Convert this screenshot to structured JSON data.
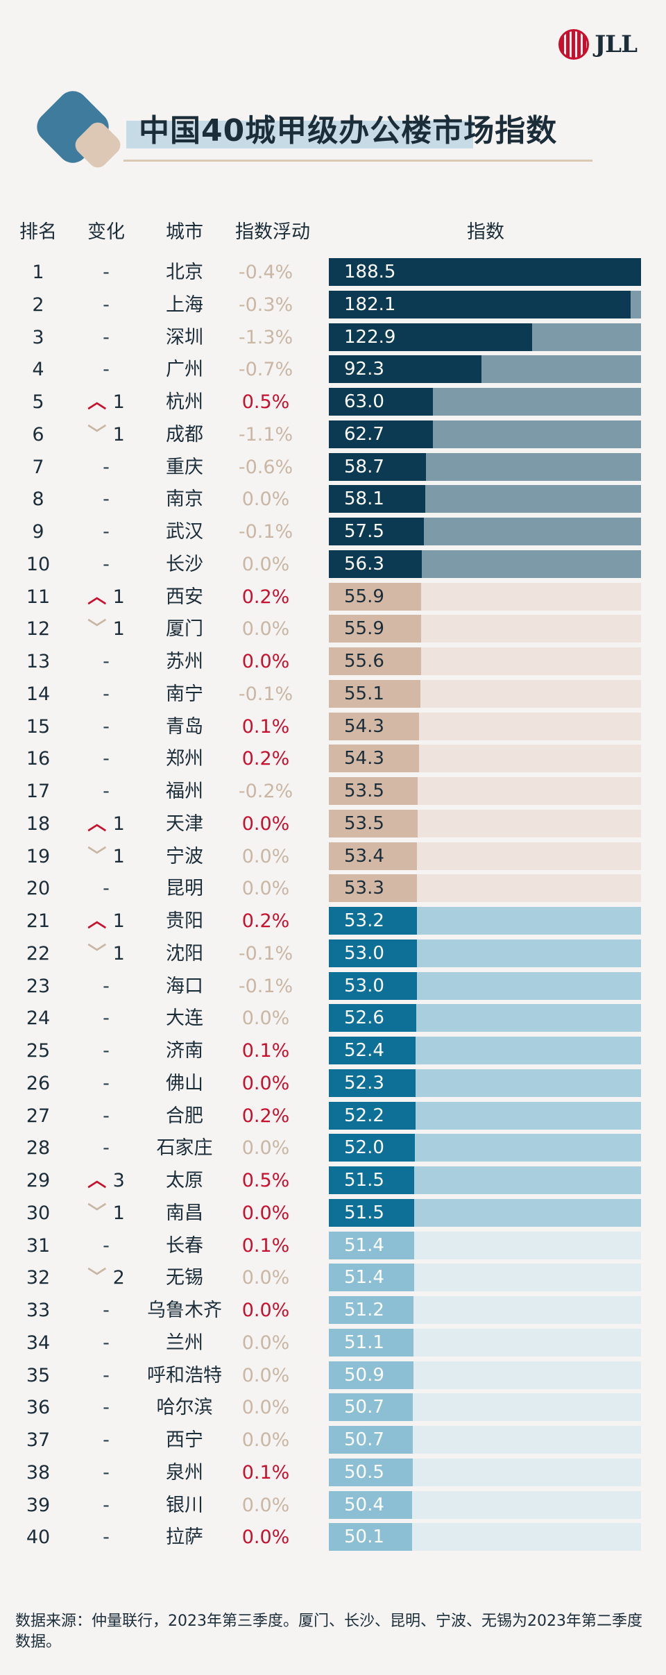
{
  "brand": "JLL",
  "title": "中国40城甲级办公楼市场指数",
  "headers": {
    "rank": "排名",
    "change": "变化",
    "city": "城市",
    "pct": "指数浮动",
    "index": "指数"
  },
  "footer": "数据来源：仲量联行，2023年第三季度。厦门、长沙、昆明、宁波、无锡为2023年第二季度数据。",
  "colors": {
    "tier1_fill": "#0c3a52",
    "tier1_track": "#7c9aa8",
    "tier2_fill": "#d3b8a5",
    "tier2_track": "#efe4dd",
    "tier3_fill": "#0e6f97",
    "tier3_track": "#a9cfde",
    "tier4_fill": "#8cbfd3",
    "tier4_track": "#e1ecf0",
    "up": "#c8102e",
    "flat": "#c9b6a4"
  },
  "chart_data": {
    "type": "table",
    "title": "中国40城甲级办公楼市场指数",
    "columns": [
      "排名",
      "变化",
      "城市",
      "指数浮动",
      "指数"
    ],
    "xlim": [
      0,
      188.5
    ],
    "rows": [
      {
        "rank": "1",
        "change": "-",
        "dir": "none",
        "city": "北京",
        "pct": "-0.4%",
        "pct_up": false,
        "index": 188.5,
        "tier": 1
      },
      {
        "rank": "2",
        "change": "-",
        "dir": "none",
        "city": "上海",
        "pct": "-0.3%",
        "pct_up": false,
        "index": 182.1,
        "tier": 1
      },
      {
        "rank": "3",
        "change": "-",
        "dir": "none",
        "city": "深圳",
        "pct": "-1.3%",
        "pct_up": false,
        "index": 122.9,
        "tier": 1
      },
      {
        "rank": "4",
        "change": "-",
        "dir": "none",
        "city": "广州",
        "pct": "-0.7%",
        "pct_up": false,
        "index": 92.3,
        "tier": 1
      },
      {
        "rank": "5",
        "change": "1",
        "dir": "up",
        "city": "杭州",
        "pct": "0.5%",
        "pct_up": true,
        "index": 63.0,
        "tier": 1
      },
      {
        "rank": "6",
        "change": "1",
        "dir": "down",
        "city": "成都",
        "pct": "-1.1%",
        "pct_up": false,
        "index": 62.7,
        "tier": 1
      },
      {
        "rank": "7",
        "change": "-",
        "dir": "none",
        "city": "重庆",
        "pct": "-0.6%",
        "pct_up": false,
        "index": 58.7,
        "tier": 1
      },
      {
        "rank": "8",
        "change": "-",
        "dir": "none",
        "city": "南京",
        "pct": "0.0%",
        "pct_up": false,
        "index": 58.1,
        "tier": 1
      },
      {
        "rank": "9",
        "change": "-",
        "dir": "none",
        "city": "武汉",
        "pct": "-0.1%",
        "pct_up": false,
        "index": 57.5,
        "tier": 1
      },
      {
        "rank": "10",
        "change": "-",
        "dir": "none",
        "city": "长沙",
        "pct": "0.0%",
        "pct_up": false,
        "index": 56.3,
        "tier": 1
      },
      {
        "rank": "11",
        "change": "1",
        "dir": "up",
        "city": "西安",
        "pct": "0.2%",
        "pct_up": true,
        "index": 55.9,
        "tier": 2
      },
      {
        "rank": "12",
        "change": "1",
        "dir": "down",
        "city": "厦门",
        "pct": "0.0%",
        "pct_up": false,
        "index": 55.9,
        "tier": 2
      },
      {
        "rank": "13",
        "change": "-",
        "dir": "none",
        "city": "苏州",
        "pct": "0.0%",
        "pct_up": true,
        "index": 55.6,
        "tier": 2
      },
      {
        "rank": "14",
        "change": "-",
        "dir": "none",
        "city": "南宁",
        "pct": "-0.1%",
        "pct_up": false,
        "index": 55.1,
        "tier": 2
      },
      {
        "rank": "15",
        "change": "-",
        "dir": "none",
        "city": "青岛",
        "pct": "0.1%",
        "pct_up": true,
        "index": 54.3,
        "tier": 2
      },
      {
        "rank": "16",
        "change": "-",
        "dir": "none",
        "city": "郑州",
        "pct": "0.2%",
        "pct_up": true,
        "index": 54.3,
        "tier": 2
      },
      {
        "rank": "17",
        "change": "-",
        "dir": "none",
        "city": "福州",
        "pct": "-0.2%",
        "pct_up": false,
        "index": 53.5,
        "tier": 2
      },
      {
        "rank": "18",
        "change": "1",
        "dir": "up",
        "city": "天津",
        "pct": "0.0%",
        "pct_up": true,
        "index": 53.5,
        "tier": 2
      },
      {
        "rank": "19",
        "change": "1",
        "dir": "down",
        "city": "宁波",
        "pct": "0.0%",
        "pct_up": false,
        "index": 53.4,
        "tier": 2
      },
      {
        "rank": "20",
        "change": "-",
        "dir": "none",
        "city": "昆明",
        "pct": "0.0%",
        "pct_up": false,
        "index": 53.3,
        "tier": 2
      },
      {
        "rank": "21",
        "change": "1",
        "dir": "up",
        "city": "贵阳",
        "pct": "0.2%",
        "pct_up": true,
        "index": 53.2,
        "tier": 3
      },
      {
        "rank": "22",
        "change": "1",
        "dir": "down",
        "city": "沈阳",
        "pct": "-0.1%",
        "pct_up": false,
        "index": 53.0,
        "tier": 3
      },
      {
        "rank": "23",
        "change": "-",
        "dir": "none",
        "city": "海口",
        "pct": "-0.1%",
        "pct_up": false,
        "index": 53.0,
        "tier": 3
      },
      {
        "rank": "24",
        "change": "-",
        "dir": "none",
        "city": "大连",
        "pct": "0.0%",
        "pct_up": false,
        "index": 52.6,
        "tier": 3
      },
      {
        "rank": "25",
        "change": "-",
        "dir": "none",
        "city": "济南",
        "pct": "0.1%",
        "pct_up": true,
        "index": 52.4,
        "tier": 3
      },
      {
        "rank": "26",
        "change": "-",
        "dir": "none",
        "city": "佛山",
        "pct": "0.0%",
        "pct_up": true,
        "index": 52.3,
        "tier": 3
      },
      {
        "rank": "27",
        "change": "-",
        "dir": "none",
        "city": "合肥",
        "pct": "0.2%",
        "pct_up": true,
        "index": 52.2,
        "tier": 3
      },
      {
        "rank": "28",
        "change": "-",
        "dir": "none",
        "city": "石家庄",
        "pct": "0.0%",
        "pct_up": false,
        "index": 52.0,
        "tier": 3
      },
      {
        "rank": "29",
        "change": "3",
        "dir": "up",
        "city": "太原",
        "pct": "0.5%",
        "pct_up": true,
        "index": 51.5,
        "tier": 3
      },
      {
        "rank": "30",
        "change": "1",
        "dir": "down",
        "city": "南昌",
        "pct": "0.0%",
        "pct_up": true,
        "index": 51.5,
        "tier": 3
      },
      {
        "rank": "31",
        "change": "-",
        "dir": "none",
        "city": "长春",
        "pct": "0.1%",
        "pct_up": true,
        "index": 51.4,
        "tier": 4
      },
      {
        "rank": "32",
        "change": "2",
        "dir": "down",
        "city": "无锡",
        "pct": "0.0%",
        "pct_up": false,
        "index": 51.4,
        "tier": 4
      },
      {
        "rank": "33",
        "change": "-",
        "dir": "none",
        "city": "乌鲁木齐",
        "pct": "0.0%",
        "pct_up": true,
        "index": 51.2,
        "tier": 4
      },
      {
        "rank": "34",
        "change": "-",
        "dir": "none",
        "city": "兰州",
        "pct": "0.0%",
        "pct_up": false,
        "index": 51.1,
        "tier": 4
      },
      {
        "rank": "35",
        "change": "-",
        "dir": "none",
        "city": "呼和浩特",
        "pct": "0.0%",
        "pct_up": false,
        "index": 50.9,
        "tier": 4
      },
      {
        "rank": "36",
        "change": "-",
        "dir": "none",
        "city": "哈尔滨",
        "pct": "0.0%",
        "pct_up": false,
        "index": 50.7,
        "tier": 4
      },
      {
        "rank": "37",
        "change": "-",
        "dir": "none",
        "city": "西宁",
        "pct": "0.0%",
        "pct_up": false,
        "index": 50.7,
        "tier": 4
      },
      {
        "rank": "38",
        "change": "-",
        "dir": "none",
        "city": "泉州",
        "pct": "0.1%",
        "pct_up": true,
        "index": 50.5,
        "tier": 4
      },
      {
        "rank": "39",
        "change": "-",
        "dir": "none",
        "city": "银川",
        "pct": "0.0%",
        "pct_up": false,
        "index": 50.4,
        "tier": 4
      },
      {
        "rank": "40",
        "change": "-",
        "dir": "none",
        "city": "拉萨",
        "pct": "0.0%",
        "pct_up": true,
        "index": 50.1,
        "tier": 4
      }
    ]
  }
}
